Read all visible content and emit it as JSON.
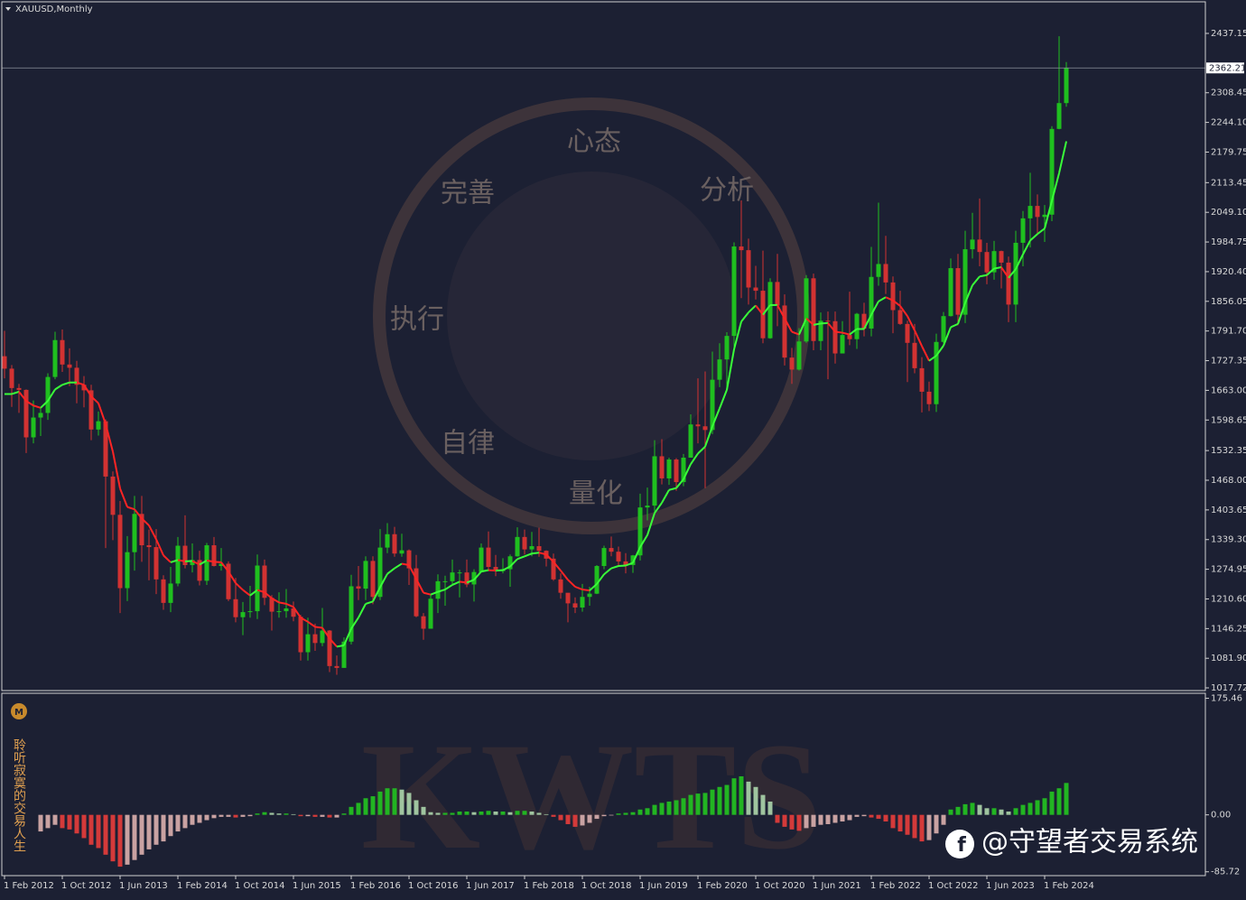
{
  "chart_data": [
    {
      "type": "candlestick",
      "title": "XAUUSD,Monthly",
      "categories": [
        "1 Feb 2012",
        null,
        null,
        null,
        null,
        null,
        null,
        null,
        "1 Oct 2012",
        null,
        null,
        null,
        null,
        null,
        null,
        null,
        "1 Jun 2013",
        null,
        null,
        null,
        null,
        null,
        null,
        null,
        "1 Feb 2014",
        null,
        null,
        null,
        null,
        null,
        null,
        null,
        "1 Oct 2014",
        null,
        null,
        null,
        null,
        null,
        null,
        null,
        "1 Jun 2015",
        null,
        null,
        null,
        null,
        null,
        null,
        null,
        "1 Feb 2016",
        null,
        null,
        null,
        null,
        null,
        null,
        null,
        "1 Oct 2016",
        null,
        null,
        null,
        null,
        null,
        null,
        null,
        "1 Jun 2017",
        null,
        null,
        null,
        null,
        null,
        null,
        null,
        "1 Feb 2018",
        null,
        null,
        null,
        null,
        null,
        null,
        null,
        "1 Oct 2018",
        null,
        null,
        null,
        null,
        null,
        null,
        null,
        "1 Jun 2019",
        null,
        null,
        null,
        null,
        null,
        null,
        null,
        "1 Feb 2020",
        null,
        null,
        null,
        null,
        null,
        null,
        null,
        "1 Oct 2020",
        null,
        null,
        null,
        null,
        null,
        null,
        null,
        "1 Jun 2021",
        null,
        null,
        null,
        null,
        null,
        null,
        null,
        "1 Feb 2022",
        null,
        null,
        null,
        null,
        null,
        null,
        null,
        "1 Oct 2022",
        null,
        null,
        null,
        null,
        null,
        null,
        null,
        "1 Jun 2023",
        null,
        null,
        null,
        null,
        null,
        null,
        null,
        "1 Feb 2024",
        null,
        null,
        null
      ],
      "open": [
        1737,
        1710,
        1668,
        1664,
        1561,
        1604,
        1614,
        1692,
        1772,
        1719,
        1712,
        1675,
        1663,
        1578,
        1596,
        1476,
        1393,
        1234,
        1312,
        1395,
        1327,
        1323,
        1253,
        1202,
        1244,
        1326,
        1284,
        1295,
        1250,
        1327,
        1282,
        1287,
        1210,
        1171,
        1182,
        1184,
        1283,
        1213,
        1183,
        1184,
        1190,
        1172,
        1095,
        1134,
        1115,
        1142,
        1065,
        1061,
        1118,
        1238,
        1233,
        1293,
        1215,
        1322,
        1351,
        1309,
        1316,
        1277,
        1173,
        1146,
        1211,
        1249,
        1249,
        1268,
        1268,
        1242,
        1269,
        1322,
        1280,
        1271,
        1275,
        1303,
        1345,
        1318,
        1325,
        1315,
        1298,
        1253,
        1224,
        1201,
        1192,
        1215,
        1222,
        1282,
        1321,
        1313,
        1292,
        1284,
        1305,
        1409,
        1413,
        1520,
        1472,
        1513,
        1464,
        1517,
        1589,
        1585,
        1577,
        1686,
        1730,
        1781,
        1975,
        1967,
        1886,
        1879,
        1776,
        1898,
        1847,
        1734,
        1708,
        1769,
        1906,
        1770,
        1814,
        1813,
        1743,
        1783,
        1774,
        1829,
        1797,
        1909,
        1937,
        1897,
        1837,
        1807,
        1766,
        1711,
        1660,
        1633,
        1768,
        1824,
        1928,
        1827,
        1969,
        1990,
        1963,
        1919,
        1965,
        1940,
        1849,
        1983,
        2036,
        2063,
        2039,
        2044,
        2230,
        2286
      ],
      "close": [
        1710,
        1668,
        1664,
        1561,
        1604,
        1614,
        1692,
        1772,
        1719,
        1712,
        1675,
        1663,
        1578,
        1596,
        1476,
        1393,
        1234,
        1312,
        1395,
        1327,
        1323,
        1253,
        1202,
        1244,
        1326,
        1284,
        1295,
        1250,
        1327,
        1282,
        1287,
        1210,
        1171,
        1182,
        1184,
        1283,
        1213,
        1183,
        1184,
        1190,
        1172,
        1095,
        1134,
        1115,
        1142,
        1065,
        1061,
        1118,
        1238,
        1233,
        1293,
        1215,
        1322,
        1351,
        1309,
        1316,
        1277,
        1173,
        1146,
        1211,
        1249,
        1249,
        1268,
        1268,
        1242,
        1269,
        1322,
        1280,
        1271,
        1275,
        1303,
        1345,
        1318,
        1325,
        1315,
        1298,
        1253,
        1224,
        1201,
        1192,
        1215,
        1222,
        1282,
        1321,
        1313,
        1292,
        1284,
        1305,
        1409,
        1413,
        1520,
        1472,
        1513,
        1464,
        1517,
        1589,
        1585,
        1577,
        1686,
        1730,
        1781,
        1975,
        1967,
        1886,
        1879,
        1776,
        1898,
        1847,
        1734,
        1708,
        1769,
        1906,
        1770,
        1814,
        1813,
        1743,
        1783,
        1774,
        1829,
        1797,
        1909,
        1937,
        1897,
        1837,
        1807,
        1766,
        1711,
        1660,
        1633,
        1768,
        1824,
        1928,
        1827,
        1969,
        1990,
        1963,
        1919,
        1965,
        1940,
        1849,
        1983,
        2036,
        2063,
        2039,
        2044,
        2230,
        2286,
        2362
      ],
      "high": [
        1792,
        1718,
        1677,
        1665,
        1641,
        1625,
        1700,
        1790,
        1795,
        1754,
        1727,
        1694,
        1675,
        1617,
        1600,
        1487,
        1423,
        1347,
        1434,
        1434,
        1361,
        1362,
        1262,
        1280,
        1345,
        1392,
        1331,
        1315,
        1332,
        1345,
        1321,
        1292,
        1256,
        1204,
        1239,
        1307,
        1296,
        1219,
        1225,
        1232,
        1205,
        1176,
        1170,
        1157,
        1191,
        1143,
        1088,
        1127,
        1263,
        1282,
        1303,
        1303,
        1362,
        1375,
        1367,
        1352,
        1318,
        1306,
        1180,
        1220,
        1264,
        1261,
        1296,
        1274,
        1296,
        1275,
        1331,
        1357,
        1306,
        1299,
        1307,
        1366,
        1361,
        1356,
        1365,
        1316,
        1309,
        1266,
        1222,
        1214,
        1243,
        1237,
        1284,
        1326,
        1346,
        1324,
        1310,
        1306,
        1439,
        1452,
        1555,
        1557,
        1517,
        1516,
        1525,
        1611,
        1689,
        1704,
        1747,
        1765,
        1789,
        1984,
        2075,
        1992,
        1933,
        1966,
        1906,
        1959,
        1871,
        1755,
        1798,
        1913,
        1916,
        1832,
        1834,
        1834,
        1813,
        1877,
        1831,
        1853,
        1974,
        2070,
        1998,
        1910,
        1879,
        1814,
        1807,
        1735,
        1682,
        1786,
        1833,
        1949,
        1959,
        2009,
        2048,
        2079,
        1983,
        1987,
        1966,
        1953,
        2009,
        2052,
        2135,
        2088,
        2065,
        2236,
        2431,
        2375
      ],
      "low": [
        1689,
        1627,
        1614,
        1527,
        1548,
        1564,
        1599,
        1687,
        1703,
        1672,
        1635,
        1626,
        1555,
        1565,
        1321,
        1338,
        1180,
        1206,
        1272,
        1291,
        1251,
        1221,
        1187,
        1182,
        1238,
        1277,
        1268,
        1240,
        1241,
        1281,
        1272,
        1206,
        1160,
        1132,
        1170,
        1167,
        1197,
        1142,
        1170,
        1170,
        1162,
        1077,
        1077,
        1098,
        1108,
        1052,
        1046,
        1062,
        1112,
        1208,
        1208,
        1199,
        1208,
        1310,
        1302,
        1302,
        1241,
        1171,
        1122,
        1146,
        1180,
        1196,
        1243,
        1214,
        1236,
        1205,
        1268,
        1272,
        1260,
        1266,
        1237,
        1302,
        1307,
        1303,
        1302,
        1281,
        1250,
        1211,
        1160,
        1180,
        1183,
        1196,
        1221,
        1275,
        1303,
        1280,
        1266,
        1267,
        1294,
        1381,
        1400,
        1459,
        1458,
        1445,
        1455,
        1517,
        1548,
        1451,
        1568,
        1670,
        1671,
        1757,
        1863,
        1849,
        1860,
        1765,
        1775,
        1802,
        1717,
        1677,
        1706,
        1766,
        1750,
        1750,
        1687,
        1721,
        1746,
        1761,
        1753,
        1780,
        1780,
        1890,
        1872,
        1787,
        1805,
        1681,
        1700,
        1615,
        1618,
        1616,
        1765,
        1823,
        1804,
        1809,
        1949,
        1932,
        1893,
        1903,
        1884,
        1811,
        1811,
        1932,
        1973,
        2001,
        1985,
        2030,
        2229,
        2278
      ],
      "up_color": "#1fbf1f",
      "down_color": "#d23232",
      "ma": [
        1655,
        1655,
        1660,
        1640,
        1630,
        1625,
        1640,
        1665,
        1675,
        1680,
        1680,
        1675,
        1650,
        1635,
        1590,
        1530,
        1450,
        1410,
        1405,
        1385,
        1370,
        1340,
        1305,
        1290,
        1295,
        1292,
        1293,
        1285,
        1294,
        1291,
        1290,
        1270,
        1245,
        1230,
        1218,
        1230,
        1225,
        1212,
        1203,
        1200,
        1193,
        1170,
        1161,
        1150,
        1148,
        1125,
        1107,
        1110,
        1146,
        1170,
        1200,
        1205,
        1236,
        1265,
        1277,
        1287,
        1284,
        1254,
        1224,
        1220,
        1226,
        1231,
        1241,
        1248,
        1246,
        1252,
        1270,
        1273,
        1272,
        1273,
        1281,
        1297,
        1303,
        1309,
        1311,
        1307,
        1291,
        1272,
        1252,
        1237,
        1231,
        1229,
        1243,
        1264,
        1277,
        1282,
        1283,
        1289,
        1323,
        1349,
        1397,
        1419,
        1447,
        1451,
        1470,
        1503,
        1526,
        1541,
        1585,
        1624,
        1664,
        1752,
        1812,
        1832,
        1847,
        1827,
        1848,
        1848,
        1819,
        1790,
        1784,
        1819,
        1805,
        1808,
        1809,
        1790,
        1788,
        1784,
        1796,
        1796,
        1827,
        1856,
        1865,
        1858,
        1846,
        1824,
        1793,
        1759,
        1727,
        1738,
        1760,
        1800,
        1807,
        1853,
        1891,
        1910,
        1913,
        1927,
        1930,
        1907,
        1926,
        1958,
        1988,
        2002,
        2014,
        2074,
        2134,
        2203
      ],
      "ma_up_color": "#39ff39",
      "ma_down_color": "#ff2424",
      "last_price": 2362.21,
      "ylim": [
        1011.85,
        2503.7
      ],
      "yticks": [
        2437.15,
        2308.45,
        {
          "value": 2244.1,
          "label": "2244.10"
        },
        2179.75,
        2113.45,
        {
          "value": 2049.1,
          "label": "2049.10"
        },
        1984.75,
        {
          "value": 1920.4,
          "label": "1920.40"
        },
        1856.05,
        {
          "value": 1791.7,
          "label": "1791.70"
        },
        1727.35,
        {
          "value": 1663,
          "label": "1663.00"
        },
        1598.65,
        1532.35,
        {
          "value": 1468,
          "label": "1468.00"
        },
        1403.65,
        {
          "value": 1339.3,
          "label": "1339.30"
        },
        1274.95,
        {
          "value": 1210.6,
          "label": "1210.60"
        },
        1146.25,
        {
          "value": 1081.9,
          "label": "1081.90"
        },
        1017.72
      ]
    },
    {
      "type": "bar",
      "values": [
        null,
        null,
        null,
        null,
        null,
        -25,
        -20,
        -15,
        -20,
        -22,
        -28,
        -35,
        -45,
        -50,
        -60,
        -70,
        -78,
        -75,
        -68,
        -60,
        -52,
        -45,
        -40,
        -32,
        -25,
        -20,
        -15,
        -12,
        -8,
        -5,
        -3,
        -3,
        -4,
        -3,
        -2,
        2,
        4,
        3,
        2,
        2,
        1,
        -2,
        -2,
        -3,
        -3,
        -4,
        -4,
        2,
        12,
        18,
        25,
        28,
        35,
        40,
        40,
        38,
        33,
        22,
        12,
        4,
        3,
        3,
        3,
        5,
        5,
        4,
        5,
        6,
        5,
        5,
        4,
        6,
        6,
        5,
        3,
        1,
        -3,
        -8,
        -14,
        -18,
        -16,
        -12,
        -6,
        -2,
        -1,
        2,
        3,
        4,
        8,
        10,
        15,
        18,
        20,
        22,
        25,
        30,
        32,
        33,
        38,
        42,
        45,
        55,
        58,
        50,
        42,
        30,
        20,
        -12,
        -18,
        -22,
        -24,
        -20,
        -18,
        -15,
        -14,
        -12,
        -10,
        -8,
        -3,
        -2,
        -4,
        -6,
        -10,
        -20,
        -25,
        -30,
        -35,
        -40,
        -38,
        -28,
        -15,
        8,
        12,
        16,
        18,
        15,
        10,
        10,
        8,
        5,
        10,
        15,
        18,
        22,
        25,
        35,
        40,
        48
      ],
      "colors": {
        "up_rising": "#22b522",
        "up_falling": "#9fc49f",
        "down_falling": "#d43a3a",
        "down_rising": "#c9a2a2"
      },
      "ylim": [
        -91.5,
        183
      ],
      "yticks": [
        175.46,
        {
          "value": 0,
          "label": "0.00"
        },
        -85.72
      ]
    }
  ],
  "watermark": {
    "brand": "KWTS",
    "circle": [
      "心态",
      "分析",
      "完善",
      "执行",
      "自律",
      "量化"
    ]
  },
  "side_text": "聆听寂寞的交易人生",
  "footer": "@守望者交易系统"
}
